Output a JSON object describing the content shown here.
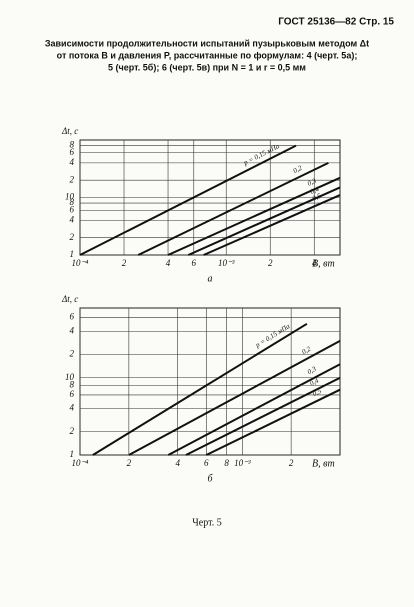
{
  "header": "ГОСТ 25136—82 Стр. 15",
  "caption": [
    "Зависимости продолжительности испытаний пузырьковым методом Δt",
    "от потока B и давления P, рассчитанные по формулам: 4 (черт. 5а);",
    "5 (черт. 5б); 6 (черт. 5в) при N = 1 и r = 0,5 мм"
  ],
  "footer": "Черт. 5",
  "chart_data": [
    {
      "type": "line",
      "sublabel": "а",
      "xlabel": "B, вт",
      "ylabel": "Δt, c",
      "xlog": true,
      "ylog": true,
      "grid": true,
      "xlim": [
        0.0001,
        0.006
      ],
      "ylim": [
        1,
        100
      ],
      "xticks": [
        {
          "value": 0.0001,
          "label": "10⁻⁴"
        },
        {
          "value": 0.0002,
          "label": "2"
        },
        {
          "value": 0.0004,
          "label": "4"
        },
        {
          "value": 0.0006,
          "label": "6"
        },
        {
          "value": 0.001,
          "label": "10⁻³"
        },
        {
          "value": 0.002,
          "label": "2"
        },
        {
          "value": 0.004,
          "label": "4"
        }
      ],
      "yticks": [
        1,
        2,
        4,
        6,
        8,
        10,
        {
          "value": 20,
          "label": "2"
        },
        {
          "value": 40,
          "label": "4"
        },
        {
          "value": 60,
          "label": "6"
        },
        {
          "value": 80,
          "label": "8"
        }
      ],
      "series": [
        {
          "name": "p = 0,15 мПа",
          "color": "#111",
          "x": [
            0.0001,
            0.003
          ],
          "values": [
            1,
            80
          ]
        },
        {
          "name": "0,2",
          "color": "#111",
          "x": [
            0.00025,
            0.005
          ],
          "values": [
            1,
            40
          ]
        },
        {
          "name": "0,3",
          "color": "#111",
          "x": [
            0.0004,
            0.006
          ],
          "values": [
            1,
            22
          ]
        },
        {
          "name": "0,4",
          "color": "#111",
          "x": [
            0.00055,
            0.006
          ],
          "values": [
            1,
            15
          ]
        },
        {
          "name": "0,5",
          "color": "#111",
          "x": [
            0.0007,
            0.006
          ],
          "values": [
            1,
            11
          ]
        }
      ]
    },
    {
      "type": "line",
      "sublabel": "б",
      "xlabel": "B, вт",
      "ylabel": "Δt, c",
      "xlog": true,
      "ylog": true,
      "grid": true,
      "xlim": [
        0.0001,
        0.004
      ],
      "ylim": [
        1,
        80
      ],
      "xticks": [
        {
          "value": 0.0001,
          "label": "10⁻⁴"
        },
        {
          "value": 0.0002,
          "label": "2"
        },
        {
          "value": 0.0004,
          "label": "4"
        },
        {
          "value": 0.0006,
          "label": "6"
        },
        {
          "value": 0.0008,
          "label": "8"
        },
        {
          "value": 0.001,
          "label": "10⁻³"
        },
        {
          "value": 0.002,
          "label": "2"
        }
      ],
      "yticks": [
        1,
        2,
        4,
        6,
        8,
        10,
        {
          "value": 20,
          "label": "2"
        },
        {
          "value": 40,
          "label": "4"
        },
        {
          "value": 60,
          "label": "6"
        }
      ],
      "series": [
        {
          "name": "p = 0,15 мПа",
          "color": "#111",
          "x": [
            0.00012,
            0.0025
          ],
          "values": [
            1,
            50
          ]
        },
        {
          "name": "0,2",
          "color": "#111",
          "x": [
            0.0002,
            0.004
          ],
          "values": [
            1,
            30
          ]
        },
        {
          "name": "0,3",
          "color": "#111",
          "x": [
            0.00035,
            0.004
          ],
          "values": [
            1,
            15
          ]
        },
        {
          "name": "0,4",
          "color": "#111",
          "x": [
            0.00045,
            0.004
          ],
          "values": [
            1,
            10
          ]
        },
        {
          "name": "0,5",
          "color": "#111",
          "x": [
            0.0006,
            0.004
          ],
          "values": [
            1,
            7
          ]
        }
      ]
    }
  ]
}
